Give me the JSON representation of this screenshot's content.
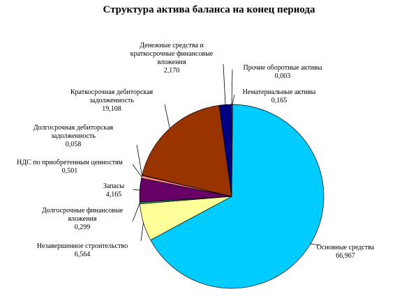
{
  "chart_data": {
    "type": "pie",
    "title": "Структура актива баланса на конец периода",
    "categories": [
      "Нематериальные активы",
      "Основные средства",
      "Незавершенное строительство",
      "Долгосрочные финансовые вложения",
      "Запасы",
      "НДС по приобретенным ценностям",
      "Долгосрочная дебиторская задолженность",
      "Краткосрочная дебиторская задолженность",
      "Денежные средства и краткосрочные финансовые вложения",
      "Прочие оборотные активы"
    ],
    "values": [
      0.165,
      66.967,
      6.564,
      0.299,
      4.165,
      0.501,
      0.058,
      19.108,
      2.17,
      0.003
    ],
    "value_labels": [
      "0,165",
      "66,967",
      "6,564",
      "0,299",
      "4,165",
      "0,501",
      "0,058",
      "19,108",
      "2,170",
      "0,003"
    ],
    "colors": [
      "#9999ff",
      "#00ccff",
      "#ffff99",
      "#339966",
      "#660066",
      "#ff8080",
      "#0066cc",
      "#993300",
      "#000080",
      "#ccccff"
    ]
  }
}
